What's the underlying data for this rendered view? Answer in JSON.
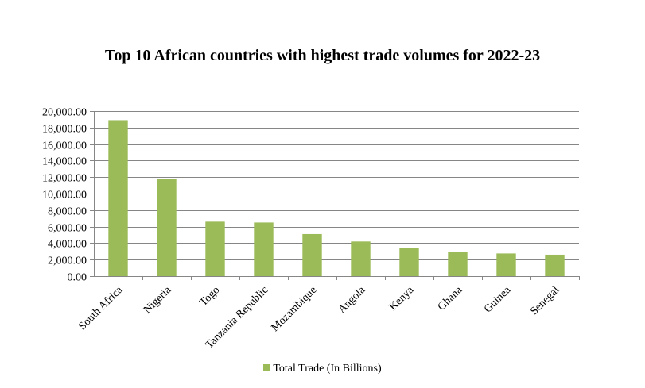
{
  "chart_data": {
    "type": "bar",
    "title": "Top 10 African countries with highest trade volumes for 2022-23",
    "categories": [
      "South Africa",
      "Nigeria",
      "Togo",
      "Tanzania Republic",
      "Mozambique",
      "Angola",
      "Kenya",
      "Ghana",
      "Guinea",
      "Senegal"
    ],
    "series": [
      {
        "name": "Total Trade (In Billions)",
        "values": [
          18900,
          11800,
          6600,
          6500,
          5100,
          4200,
          3400,
          2900,
          2750,
          2600
        ],
        "color": "#9bbb59"
      }
    ],
    "ylim": [
      0,
      20000
    ],
    "yticks": [
      "0.00",
      "2,000.00",
      "4,000.00",
      "6,000.00",
      "8,000.00",
      "10,000.00",
      "12,000.00",
      "14,000.00",
      "16,000.00",
      "18,000.00",
      "20,000.00"
    ],
    "grid": true,
    "gridColor": "#868686",
    "legend": "bottom"
  }
}
